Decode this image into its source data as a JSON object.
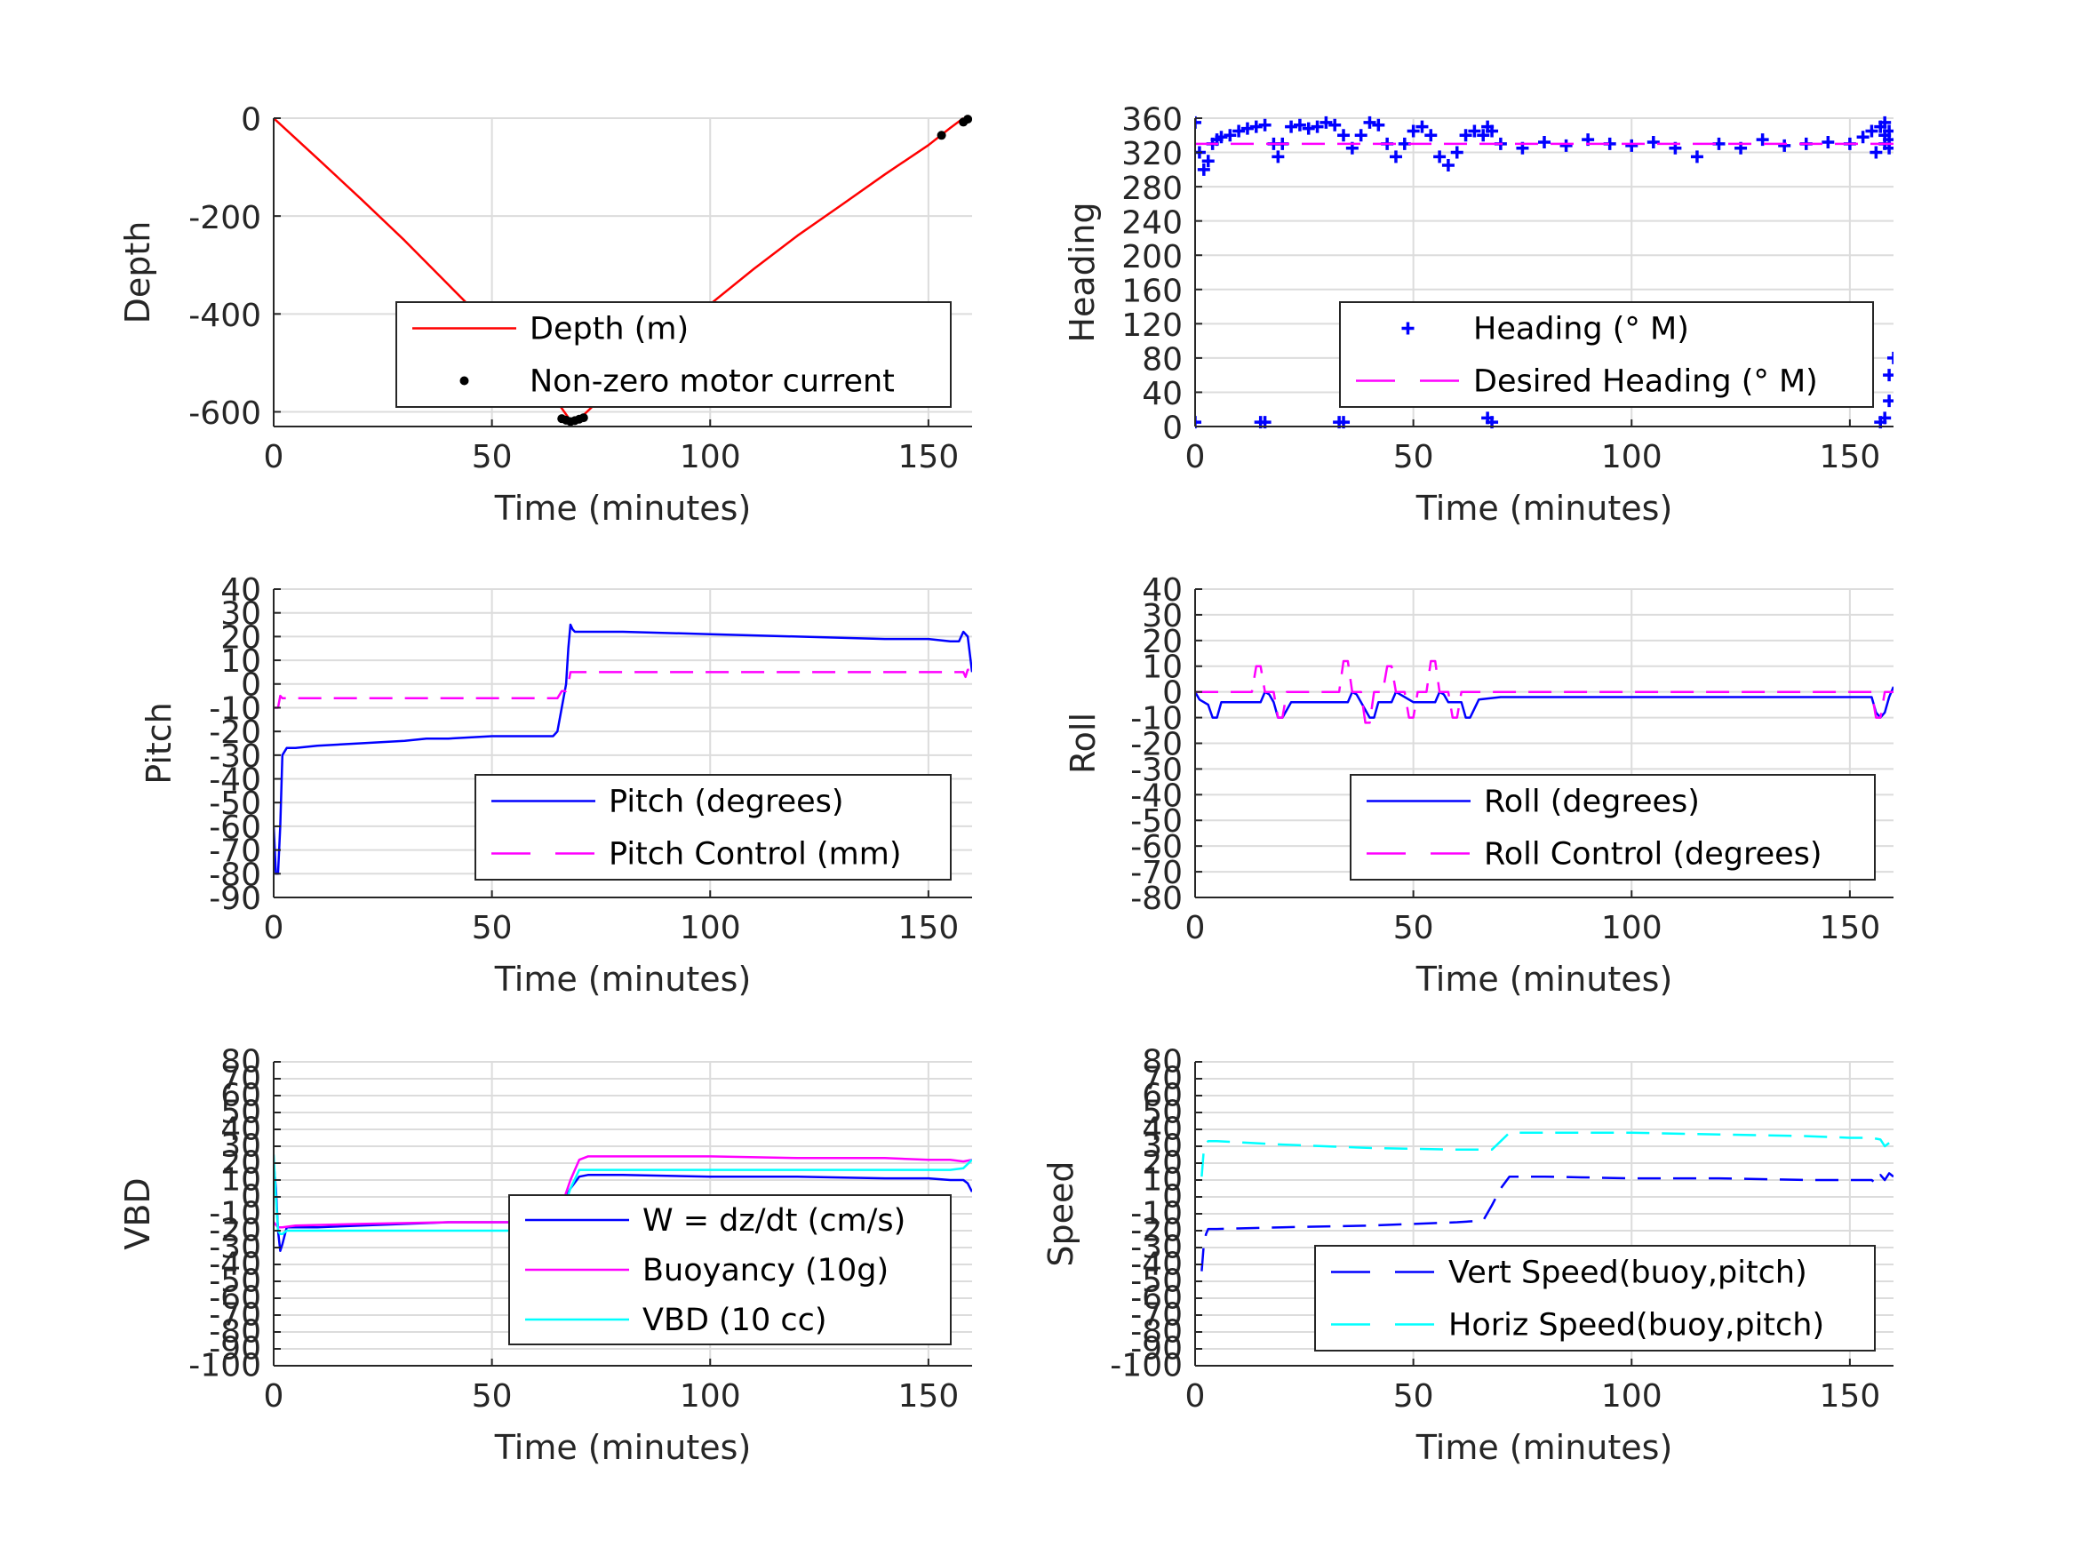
{
  "colors": {
    "red": "#ff0000",
    "blue": "#0000ff",
    "magenta": "#ff00ff",
    "cyan": "#00ffff",
    "black": "#000000",
    "grid": "#dcdcdc",
    "axis": "#262626"
  },
  "chart_data": [
    {
      "id": "depth",
      "type": "line",
      "xlabel": "Time (minutes)",
      "ylabel": "Depth",
      "xlim": [
        0,
        160
      ],
      "ylim": [
        -630,
        0
      ],
      "xticks": [
        0,
        50,
        100,
        150
      ],
      "xtick_labels": [
        "0",
        "50",
        "100",
        "150"
      ],
      "yticks": [
        0,
        -200,
        -400,
        -600
      ],
      "ytick_labels": [
        "0",
        "-200",
        "-400",
        "-600"
      ],
      "grid": true,
      "legend_position": "lower-right",
      "series": [
        {
          "name": "Depth (m)",
          "color": "red",
          "style": "solid",
          "x": [
            0,
            10,
            20,
            30,
            40,
            50,
            60,
            65,
            68,
            70,
            72,
            80,
            90,
            100,
            110,
            120,
            130,
            140,
            150,
            155,
            158
          ],
          "y": [
            0,
            -82,
            -165,
            -250,
            -340,
            -430,
            -525,
            -580,
            -618,
            -615,
            -598,
            -530,
            -455,
            -380,
            -308,
            -240,
            -178,
            -115,
            -55,
            -20,
            0
          ]
        },
        {
          "name": "Non-zero motor current",
          "color": "black",
          "style": "dots",
          "x": [
            66,
            67,
            68,
            69,
            70,
            71,
            153,
            158,
            159
          ],
          "y": [
            -614,
            -617,
            -620,
            -618,
            -615,
            -612,
            -35,
            -8,
            -2
          ]
        }
      ]
    },
    {
      "id": "heading",
      "type": "scatter",
      "xlabel": "Time (minutes)",
      "ylabel": "Heading",
      "xlim": [
        0,
        160
      ],
      "ylim": [
        0,
        360
      ],
      "xticks": [
        0,
        50,
        100,
        150
      ],
      "xtick_labels": [
        "0",
        "50",
        "100",
        "150"
      ],
      "yticks": [
        0,
        40,
        80,
        120,
        160,
        200,
        240,
        280,
        320,
        360
      ],
      "ytick_labels": [
        "0",
        "40",
        "80",
        "120",
        "160",
        "200",
        "240",
        "280",
        "320",
        "360"
      ],
      "grid": true,
      "legend_position": "lower-right",
      "series": [
        {
          "name": "Heading (° M)",
          "color": "blue",
          "style": "plus",
          "x": [
            0,
            1,
            2,
            3,
            4,
            5,
            6,
            8,
            10,
            12,
            14,
            16,
            18,
            19,
            20,
            22,
            24,
            26,
            28,
            30,
            32,
            34,
            36,
            38,
            40,
            42,
            44,
            46,
            48,
            50,
            52,
            54,
            56,
            58,
            60,
            62,
            64,
            66,
            67,
            68,
            70,
            75,
            80,
            85,
            90,
            95,
            100,
            105,
            110,
            115,
            120,
            125,
            130,
            135,
            140,
            145,
            150,
            153,
            155,
            156,
            157,
            158,
            158,
            158,
            159,
            159,
            159,
            0,
            15,
            16,
            33,
            34,
            67,
            67,
            67,
            68,
            157,
            158,
            159,
            159,
            160
          ],
          "y": [
            355,
            320,
            300,
            310,
            330,
            335,
            338,
            340,
            345,
            348,
            350,
            352,
            330,
            315,
            330,
            350,
            352,
            348,
            350,
            355,
            352,
            340,
            325,
            340,
            355,
            352,
            330,
            315,
            330,
            345,
            350,
            340,
            315,
            305,
            320,
            340,
            345,
            340,
            350,
            345,
            330,
            325,
            332,
            328,
            335,
            330,
            328,
            332,
            325,
            315,
            330,
            325,
            335,
            328,
            330,
            332,
            330,
            338,
            345,
            320,
            350,
            355,
            330,
            340,
            335,
            345,
            325,
            5,
            5,
            5,
            5,
            5,
            10,
            30,
            50,
            5,
            5,
            10,
            30,
            60,
            80
          ]
        },
        {
          "name": "Desired Heading (° M)",
          "color": "magenta",
          "style": "dashed",
          "x": [
            0,
            160
          ],
          "y": [
            330,
            330
          ]
        }
      ]
    },
    {
      "id": "pitch",
      "type": "line",
      "xlabel": "Time (minutes)",
      "ylabel": "Pitch",
      "xlim": [
        0,
        160
      ],
      "ylim": [
        -90,
        40
      ],
      "xticks": [
        0,
        50,
        100,
        150
      ],
      "xtick_labels": [
        "0",
        "50",
        "100",
        "150"
      ],
      "yticks": [
        40,
        30,
        20,
        10,
        0,
        -10,
        -20,
        -30,
        -40,
        -50,
        -60,
        -70,
        -80,
        -90
      ],
      "ytick_labels": [
        "40",
        "30",
        "20",
        "10",
        "0",
        "-10",
        "-20",
        "-30",
        "-40",
        "-50",
        "-60",
        "-70",
        "-80",
        "-90"
      ],
      "grid": true,
      "legend_position": "lower-right",
      "series": [
        {
          "name": "Pitch (degrees)",
          "color": "blue",
          "style": "solid",
          "x": [
            0,
            0.5,
            1,
            1.5,
            2,
            3,
            5,
            10,
            20,
            30,
            35,
            40,
            50,
            60,
            64,
            65,
            66,
            67,
            67.5,
            68,
            68.5,
            69,
            70,
            80,
            100,
            120,
            140,
            150,
            155,
            157,
            158,
            159,
            160
          ],
          "y": [
            -60,
            -80,
            -80,
            -60,
            -30,
            -27,
            -27,
            -26,
            -25,
            -24,
            -23,
            -23,
            -22,
            -22,
            -22,
            -20,
            -10,
            0,
            15,
            25,
            23,
            22,
            22,
            22,
            21,
            20,
            19,
            19,
            18,
            18,
            22,
            20,
            5
          ]
        },
        {
          "name": "Pitch Control (mm)",
          "color": "magenta",
          "style": "dashed",
          "x": [
            0,
            1,
            1.5,
            2,
            3,
            64,
            65,
            66,
            67,
            67.5,
            68,
            69,
            70,
            158,
            158.5,
            159,
            160
          ],
          "y": [
            -10,
            -10,
            -5,
            -6,
            -6,
            -6,
            -6,
            -3,
            -3,
            0,
            5,
            5,
            5,
            5,
            3,
            6,
            6
          ]
        }
      ]
    },
    {
      "id": "roll",
      "type": "line",
      "xlabel": "Time (minutes)",
      "ylabel": "Roll",
      "xlim": [
        0,
        160
      ],
      "ylim": [
        -80,
        40
      ],
      "xticks": [
        0,
        50,
        100,
        150
      ],
      "xtick_labels": [
        "0",
        "50",
        "100",
        "150"
      ],
      "yticks": [
        40,
        30,
        20,
        10,
        0,
        -10,
        -20,
        -30,
        -40,
        -50,
        -60,
        -70,
        -80
      ],
      "ytick_labels": [
        "40",
        "30",
        "20",
        "10",
        "0",
        "-10",
        "-20",
        "-30",
        "-40",
        "-50",
        "-60",
        "-70",
        "-80"
      ],
      "grid": true,
      "legend_position": "lower-right",
      "series": [
        {
          "name": "Roll (degrees)",
          "color": "blue",
          "style": "solid",
          "x": [
            0,
            1,
            2,
            3,
            4,
            5,
            6,
            10,
            15,
            16,
            17,
            18,
            19,
            20,
            22,
            30,
            35,
            36,
            37,
            38,
            40,
            41,
            42,
            45,
            46,
            47,
            50,
            55,
            56,
            57,
            58,
            61,
            62,
            63,
            65,
            70,
            80,
            100,
            120,
            140,
            155,
            156,
            157,
            158,
            159,
            160
          ],
          "y": [
            0,
            -3,
            -4,
            -5,
            -10,
            -10,
            -4,
            -4,
            -4,
            0,
            -1,
            -4,
            -10,
            -10,
            -4,
            -4,
            -4,
            0,
            -1,
            -4,
            -10,
            -10,
            -4,
            -4,
            0,
            -1,
            -4,
            -4,
            0,
            -1,
            -4,
            -4,
            -10,
            -10,
            -3,
            -2,
            -2,
            -2,
            -2,
            -2,
            -2,
            -8,
            -10,
            -8,
            -2,
            2
          ]
        },
        {
          "name": "Roll Control (degrees)",
          "color": "magenta",
          "style": "dashed",
          "x": [
            0,
            5,
            13,
            14,
            15,
            16,
            17,
            18,
            19,
            20,
            21,
            22,
            33,
            34,
            35,
            36,
            37,
            38,
            39,
            40,
            41,
            42,
            43,
            44,
            45,
            46,
            47,
            48,
            49,
            50,
            51,
            52,
            53,
            54,
            55,
            56,
            57,
            58,
            59,
            60,
            61,
            62,
            63,
            64,
            65,
            66,
            70,
            155,
            156,
            157,
            158,
            160
          ],
          "y": [
            0,
            0,
            0,
            10,
            10,
            0,
            0,
            0,
            -10,
            -10,
            0,
            0,
            0,
            12,
            12,
            0,
            0,
            0,
            -12,
            -12,
            0,
            0,
            0,
            10,
            10,
            0,
            0,
            0,
            -10,
            -10,
            0,
            0,
            0,
            12,
            12,
            0,
            0,
            0,
            -10,
            -10,
            0,
            0,
            0,
            0,
            0,
            0,
            0,
            0,
            -10,
            -10,
            0,
            0
          ]
        }
      ]
    },
    {
      "id": "vbd",
      "type": "line",
      "xlabel": "Time (minutes)",
      "ylabel": "VBD",
      "xlim": [
        0,
        160
      ],
      "ylim": [
        -100,
        80
      ],
      "xticks": [
        0,
        50,
        100,
        150
      ],
      "xtick_labels": [
        "0",
        "50",
        "100",
        "150"
      ],
      "yticks": [
        80,
        70,
        60,
        50,
        40,
        30,
        20,
        10,
        0,
        -10,
        -20,
        -30,
        -40,
        -50,
        -60,
        -70,
        -80,
        -90,
        -100
      ],
      "ytick_labels": [
        "80",
        "70",
        "60",
        "50",
        "40",
        "30",
        "20",
        "10",
        "0",
        "-10",
        "-20",
        "-30",
        "-40",
        "-50",
        "-60",
        "-70",
        "-80",
        "-90",
        "-100"
      ],
      "grid": true,
      "legend_position": "lower-right",
      "series": [
        {
          "name": "W = dz/dt (cm/s)",
          "color": "blue",
          "style": "solid",
          "x": [
            0,
            0.5,
            1,
            1.5,
            2,
            3,
            5,
            10,
            20,
            30,
            40,
            50,
            60,
            64,
            65,
            66,
            68,
            70,
            72,
            80,
            100,
            120,
            140,
            150,
            155,
            158,
            159,
            160
          ],
          "y": [
            20,
            5,
            -20,
            -32,
            -28,
            -18,
            -18,
            -18,
            -17,
            -16,
            -15,
            -15,
            -15,
            -14,
            -13,
            -5,
            5,
            12,
            13,
            13,
            12,
            12,
            11,
            11,
            10,
            10,
            8,
            3
          ]
        },
        {
          "name": "Buoyancy (10g)",
          "color": "magenta",
          "style": "solid",
          "x": [
            0,
            1,
            2,
            5,
            20,
            40,
            60,
            64,
            65,
            66,
            68,
            70,
            72,
            80,
            100,
            120,
            140,
            150,
            155,
            158,
            160
          ],
          "y": [
            -15,
            -18,
            -18,
            -17,
            -16,
            -15,
            -15,
            -15,
            -14,
            -5,
            10,
            22,
            24,
            24,
            24,
            23,
            23,
            22,
            22,
            21,
            22
          ]
        },
        {
          "name": "VBD (10 cc)",
          "color": "cyan",
          "style": "solid",
          "x": [
            0,
            0.5,
            1,
            1.5,
            2,
            3,
            5,
            20,
            40,
            60,
            64,
            65,
            66,
            68,
            70,
            72,
            80,
            100,
            120,
            140,
            150,
            155,
            158,
            160
          ],
          "y": [
            25,
            0,
            -20,
            -22,
            -22,
            -20,
            -20,
            -20,
            -20,
            -20,
            -20,
            -20,
            -10,
            5,
            16,
            16,
            16,
            16,
            16,
            16,
            16,
            16,
            17,
            22
          ]
        }
      ]
    },
    {
      "id": "speed",
      "type": "line",
      "xlabel": "Time (minutes)",
      "ylabel": "Speed",
      "xlim": [
        0,
        160
      ],
      "ylim": [
        -100,
        80
      ],
      "xticks": [
        0,
        50,
        100,
        150
      ],
      "xtick_labels": [
        "0",
        "50",
        "100",
        "150"
      ],
      "yticks": [
        80,
        70,
        60,
        50,
        40,
        30,
        20,
        10,
        0,
        -10,
        -20,
        -30,
        -40,
        -50,
        -60,
        -70,
        -80,
        -90,
        -100
      ],
      "ytick_labels": [
        "80",
        "70",
        "60",
        "50",
        "40",
        "30",
        "20",
        "10",
        "0",
        "-10",
        "-20",
        "-30",
        "-40",
        "-50",
        "-60",
        "-70",
        "-80",
        "-90",
        "-100"
      ],
      "grid": true,
      "legend_position": "lower-right",
      "series": [
        {
          "name": "Vert Speed(buoy,pitch)",
          "color": "blue",
          "style": "dashed",
          "x": [
            1.5,
            2,
            2.5,
            3,
            5,
            20,
            40,
            60,
            66,
            68,
            70,
            72,
            80,
            100,
            120,
            140,
            155,
            156,
            157,
            158,
            159,
            160
          ],
          "y": [
            -44,
            -28,
            -22,
            -19,
            -19,
            -18,
            -17,
            -15,
            -14,
            -5,
            5,
            12,
            12,
            11,
            11,
            10,
            10,
            8,
            13,
            10,
            14,
            12
          ]
        },
        {
          "name": "Horiz Speed(buoy,pitch)",
          "color": "cyan",
          "style": "dashed",
          "x": [
            1.5,
            2,
            2.5,
            3,
            5,
            20,
            40,
            60,
            68,
            70,
            72,
            80,
            100,
            120,
            140,
            150,
            155,
            157,
            158,
            159
          ],
          "y": [
            12,
            28,
            32,
            33,
            33,
            31,
            29,
            28,
            28,
            33,
            38,
            38,
            38,
            37,
            36,
            35,
            35,
            34,
            30,
            32
          ]
        }
      ]
    }
  ]
}
